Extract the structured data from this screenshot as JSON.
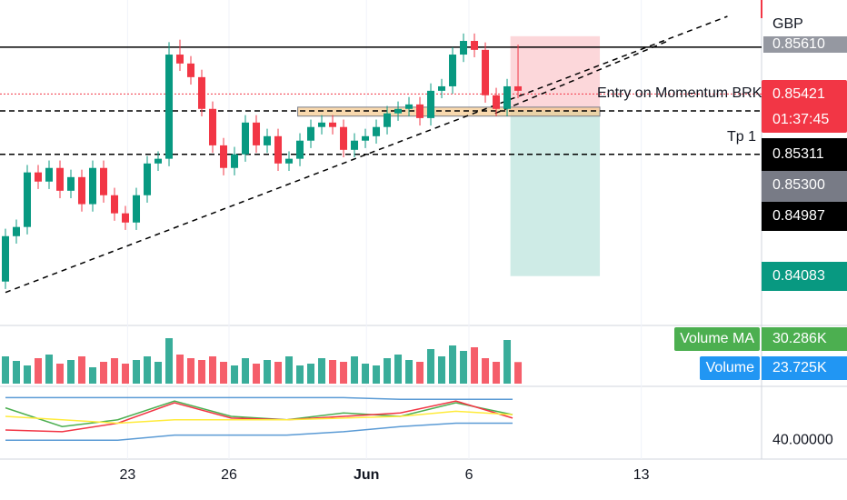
{
  "chart_data": {
    "type": "candlestick",
    "currency": "GBP",
    "ylim": [
      0.8451,
      0.858
    ],
    "xlim": [
      -0.5,
      69.33
    ],
    "xticks": [
      {
        "value": 11.2,
        "label": "23"
      },
      {
        "value": 20.5,
        "label": "26"
      },
      {
        "value": 33.1,
        "label": "Jun"
      },
      {
        "value": 42.5,
        "label": "6"
      },
      {
        "value": 58.3,
        "label": "13"
      }
    ],
    "open": [
      0.84665,
      0.84848,
      0.84885,
      0.85105,
      0.85068,
      0.85123,
      0.85031,
      0.85086,
      0.84977,
      0.85123,
      0.85013,
      0.8494,
      0.84903,
      0.85013,
      0.85141,
      0.8516,
      0.8558,
      0.85544,
      0.85489,
      0.85361,
      0.85214,
      0.85123,
      0.85178,
      0.85306,
      0.85214,
      0.85251,
      0.85141,
      0.8516,
      0.85233,
      0.85288,
      0.85306,
      0.85288,
      0.85196,
      0.85233,
      0.85251,
      0.85288,
      0.85343,
      0.85361,
      0.85379,
      0.85324,
      0.85434,
      0.85452,
      0.8558,
      0.85635,
      0.85599,
      0.85416,
      0.85361,
      0.85452
    ],
    "high": [
      0.84878,
      0.84915,
      0.85135,
      0.85135,
      0.85153,
      0.85153,
      0.85116,
      0.85116,
      0.85153,
      0.85153,
      0.85043,
      0.8497,
      0.85043,
      0.85171,
      0.8519,
      0.8563,
      0.8564,
      0.85574,
      0.85519,
      0.85391,
      0.85244,
      0.85208,
      0.85336,
      0.85336,
      0.85281,
      0.85281,
      0.8519,
      0.85263,
      0.85318,
      0.85336,
      0.85336,
      0.85318,
      0.85263,
      0.85281,
      0.85318,
      0.85373,
      0.85391,
      0.85409,
      0.85409,
      0.85464,
      0.85482,
      0.8561,
      0.85665,
      0.85665,
      0.85629,
      0.85446,
      0.85482,
      0.8562
    ],
    "low": [
      0.84635,
      0.84818,
      0.84855,
      0.85038,
      0.85038,
      0.85001,
      0.85001,
      0.84947,
      0.84947,
      0.84983,
      0.8491,
      0.84873,
      0.84873,
      0.84983,
      0.85111,
      0.8513,
      0.85514,
      0.85459,
      0.85331,
      0.85184,
      0.85093,
      0.85093,
      0.85148,
      0.85184,
      0.85184,
      0.85111,
      0.85111,
      0.8513,
      0.85203,
      0.85258,
      0.85258,
      0.85166,
      0.85166,
      0.85203,
      0.85221,
      0.85258,
      0.85313,
      0.85331,
      0.85294,
      0.85294,
      0.85404,
      0.85422,
      0.8555,
      0.85569,
      0.85386,
      0.85331,
      0.85331,
      0.85404
    ],
    "close": [
      0.84848,
      0.84885,
      0.85105,
      0.85068,
      0.85123,
      0.85031,
      0.85086,
      0.84977,
      0.85123,
      0.85013,
      0.8494,
      0.84903,
      0.85013,
      0.85141,
      0.8516,
      0.8558,
      0.85544,
      0.85489,
      0.85361,
      0.85214,
      0.85123,
      0.85178,
      0.85306,
      0.85214,
      0.85251,
      0.85141,
      0.8516,
      0.85233,
      0.85288,
      0.85306,
      0.85288,
      0.85196,
      0.85233,
      0.85251,
      0.85288,
      0.85343,
      0.85361,
      0.85379,
      0.85324,
      0.85434,
      0.85452,
      0.8558,
      0.85635,
      0.85599,
      0.85416,
      0.85361,
      0.85452,
      0.85434
    ],
    "up_color": "#089981",
    "down_color": "#f23645",
    "levels": [
      {
        "value": 0.8561,
        "label": "0.85610",
        "style": "solid",
        "color": "#000000"
      },
      {
        "value": 0.85353,
        "style": "dashed",
        "color": "#000000"
      },
      {
        "value": 0.85178,
        "style": "dashed",
        "color": "#000000"
      },
      {
        "value": 0.85421,
        "label": "0.85421",
        "style": "dotted",
        "color": "#f23645"
      }
    ],
    "trendlines": [
      {
        "x": [
          0,
          66.2
        ],
        "y": [
          0.84621,
          0.85734
        ]
      },
      {
        "x": [
          44.9,
          60.75
        ],
        "y": [
          0.85343,
          0.85635
        ]
      }
    ],
    "zone": {
      "x": [
        26.8,
        54.5
      ],
      "y": [
        0.85332,
        0.85368
      ],
      "color": "#f7c98b"
    },
    "position": {
      "x": [
        46.3,
        54.5
      ],
      "stop": 0.85654,
      "entry": 0.85353,
      "target": 0.84687
    },
    "entry_label": "Entry on Momentum BRK",
    "tp_label": "Tp 1",
    "countdown": "01:37:45",
    "price_badges": [
      "0.85311",
      "0.85300",
      "0.84987",
      "0.84083"
    ],
    "volume": {
      "label": "Volume",
      "value_label": "23.725K",
      "ma_label": "Volume MA",
      "ma_value_label": "30.286K",
      "ylim": [
        0,
        60000
      ],
      "values": [
        30000,
        25000,
        20000,
        28000,
        32000,
        22000,
        26000,
        30000,
        18000,
        24000,
        28000,
        22000,
        26000,
        30000,
        24000,
        50000,
        32000,
        28000,
        26000,
        30000,
        24000,
        20000,
        28000,
        22000,
        26000,
        24000,
        30000,
        20000,
        22000,
        28000,
        26000,
        24000,
        30000,
        22000,
        20000,
        28000,
        32000,
        26000,
        24000,
        38000,
        30000,
        42000,
        36000,
        40000,
        28000,
        24000,
        48000,
        23725
      ]
    },
    "indicator": {
      "ylim": [
        38,
        70
      ],
      "yticks": [
        {
          "value": 40,
          "label": "40.00000"
        }
      ],
      "x": [
        0,
        5.2,
        10.3,
        15.5,
        20.7,
        25.8,
        31,
        36.2,
        41.3,
        46.5
      ],
      "series": [
        {
          "color": "#4caf50",
          "values": [
            59,
            48,
            52,
            63,
            54,
            52,
            56,
            54,
            62,
            55
          ]
        },
        {
          "color": "#f23645",
          "values": [
            46,
            45,
            50,
            62,
            53,
            52,
            54,
            56,
            63,
            53
          ]
        },
        {
          "color": "#ffeb3b",
          "values": [
            54,
            52,
            50,
            52,
            52,
            52,
            53,
            54,
            57,
            55
          ]
        },
        {
          "color": "#5b9bd5",
          "values": [
            65,
            65,
            65,
            65,
            65,
            65,
            65,
            64,
            64,
            64
          ]
        },
        {
          "color": "#5b9bd5",
          "values": [
            40,
            40,
            40,
            43,
            43,
            43,
            45,
            48,
            50,
            50
          ]
        }
      ]
    }
  }
}
